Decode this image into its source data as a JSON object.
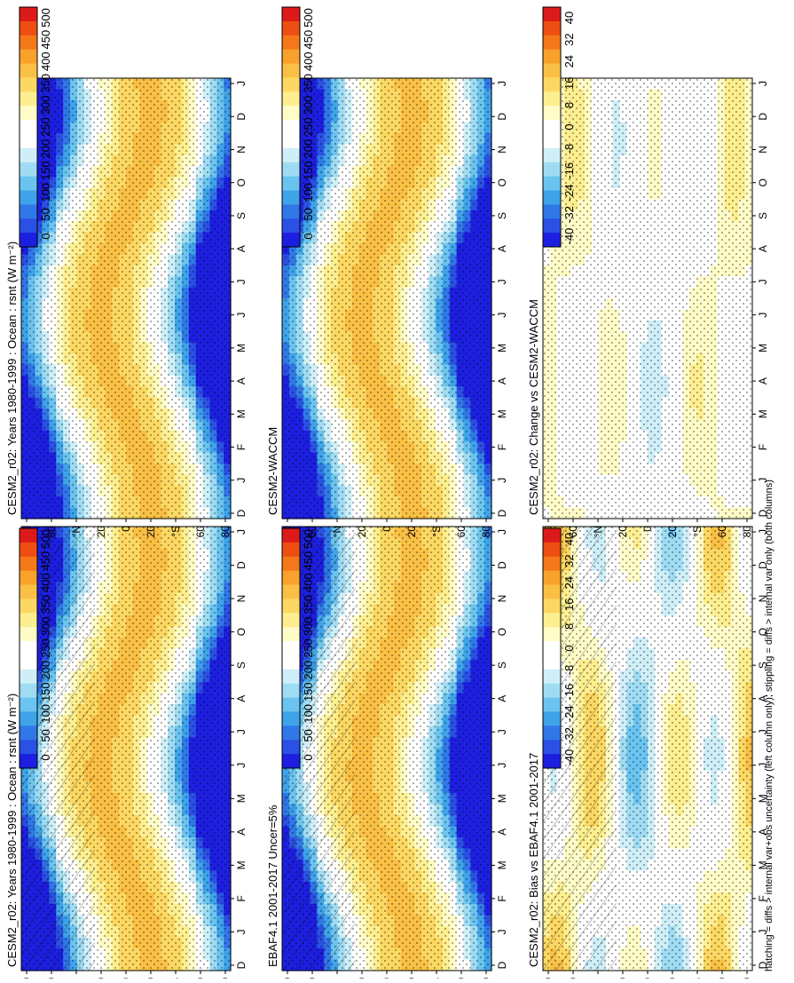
{
  "caption": "hatching = diffs > internal var+obs uncertainty (left column only); stippling = diffs > internal var only (both columns)",
  "month_labels": [
    "D",
    "J",
    "F",
    "M",
    "A",
    "M",
    "J",
    "J",
    "A",
    "S",
    "O",
    "N",
    "D",
    "J"
  ],
  "lat_labels": [
    "80",
    "60",
    "°N",
    "20",
    "0",
    "20",
    "°S",
    "60",
    "80"
  ],
  "colorbars": {
    "absolute": {
      "labels": [
        "500",
        "450",
        "400",
        "350",
        "300",
        "250",
        "200",
        "150",
        "100",
        "50",
        "0"
      ],
      "colors": [
        "#dd1a1a",
        "#ee4e12",
        "#f4781a",
        "#f8a22c",
        "#fac045",
        "#fcd862",
        "#fdee90",
        "#fffcc8",
        "#ffffff",
        "#ffffff",
        "#cfeff8",
        "#9fdcf3",
        "#6bc4ef",
        "#3fa3ea",
        "#3078e8",
        "#2b50e4",
        "#1d1fe0"
      ]
    },
    "difference": {
      "labels": [
        "40",
        "32",
        "24",
        "16",
        "8",
        "0",
        "-8",
        "-16",
        "-24",
        "-32",
        "-40"
      ],
      "colors": [
        "#dd1a1a",
        "#ee4e12",
        "#f4781a",
        "#f8a22c",
        "#fac045",
        "#fcd862",
        "#fdee90",
        "#fffcc8",
        "#ffffff",
        "#ffffff",
        "#cfeff8",
        "#9fdcf3",
        "#6bc4ef",
        "#3fa3ea",
        "#3078e8",
        "#2b50e4",
        "#1d1fe0"
      ]
    }
  },
  "chart_data": [
    {
      "type": "heatmap",
      "title": "CESM2_r02: Years 1980-1999 : Ocean : rsnt (W m⁻²)",
      "x": [
        "D",
        "J",
        "F",
        "M",
        "A",
        "M",
        "J",
        "J",
        "A",
        "S",
        "O",
        "N",
        "D",
        "J"
      ],
      "y": [
        "80",
        "60",
        "°N",
        "20",
        "0",
        "20",
        "°S",
        "60",
        "80"
      ],
      "kind": "absolute",
      "colorbar": "absolute",
      "zlim": [
        0,
        500
      ],
      "hatching": true,
      "stippling": true,
      "grid": false
    },
    {
      "type": "heatmap",
      "title": "CESM2_r02: Years 1980-1999 : Ocean : rsnt (W m⁻²)",
      "x": [
        "D",
        "J",
        "F",
        "M",
        "A",
        "M",
        "J",
        "J",
        "A",
        "S",
        "O",
        "N",
        "D",
        "J"
      ],
      "y": [
        "80",
        "60",
        "°N",
        "20",
        "0",
        "20",
        "°S",
        "60",
        "80"
      ],
      "kind": "absolute",
      "colorbar": "absolute",
      "zlim": [
        0,
        500
      ],
      "hatching": false,
      "stippling": true,
      "grid": false
    },
    {
      "type": "heatmap",
      "title": "EBAF4.1 2001-2017 Uncer=5%",
      "x": [
        "D",
        "J",
        "F",
        "M",
        "A",
        "M",
        "J",
        "J",
        "A",
        "S",
        "O",
        "N",
        "D",
        "J"
      ],
      "y": [
        "80",
        "60",
        "°N",
        "20",
        "0",
        "20",
        "°S",
        "60",
        "80"
      ],
      "kind": "absolute",
      "colorbar": "absolute",
      "zlim": [
        0,
        500
      ],
      "hatching": true,
      "stippling": true,
      "grid": false
    },
    {
      "type": "heatmap",
      "title": "CESM2-WACCM",
      "x": [
        "D",
        "J",
        "F",
        "M",
        "A",
        "M",
        "J",
        "J",
        "A",
        "S",
        "O",
        "N",
        "D",
        "J"
      ],
      "y": [
        "80",
        "60",
        "°N",
        "20",
        "0",
        "20",
        "°S",
        "60",
        "80"
      ],
      "kind": "absolute",
      "colorbar": "absolute",
      "zlim": [
        0,
        500
      ],
      "hatching": false,
      "stippling": true,
      "grid": false
    },
    {
      "type": "heatmap",
      "title": "CESM2_r02: Bias vs EBAF4.1 2001-2017",
      "x": [
        "D",
        "J",
        "F",
        "M",
        "A",
        "M",
        "J",
        "J",
        "A",
        "S",
        "O",
        "N",
        "D",
        "J"
      ],
      "y": [
        "80",
        "60",
        "°N",
        "20",
        "0",
        "20",
        "°S",
        "60",
        "80"
      ],
      "kind": "bias",
      "colorbar": "difference",
      "zlim": [
        -40,
        40
      ],
      "hatching": true,
      "stippling": true,
      "grid": false
    },
    {
      "type": "heatmap",
      "title": "CESM2_r02: Change vs CESM2-WACCM",
      "x": [
        "D",
        "J",
        "F",
        "M",
        "A",
        "M",
        "J",
        "J",
        "A",
        "S",
        "O",
        "N",
        "D",
        "J"
      ],
      "y": [
        "80",
        "60",
        "°N",
        "20",
        "0",
        "20",
        "°S",
        "60",
        "80"
      ],
      "kind": "change",
      "colorbar": "difference",
      "zlim": [
        -40,
        40
      ],
      "hatching": false,
      "stippling": true,
      "grid": false
    }
  ]
}
